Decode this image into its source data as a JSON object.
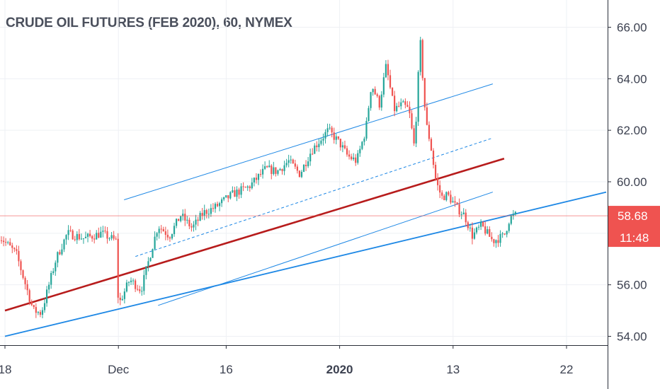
{
  "title": "CRUDE OIL FUTURES (FEB 2020), 60, NYMEX",
  "colors": {
    "up": "#26a69a",
    "down": "#ef5350",
    "price_marker": "#ef5350",
    "trend_red": "#b71c1c",
    "trend_blue": "#1e88e5"
  },
  "chart_data": {
    "type": "candlestick",
    "title": "CRUDE OIL FUTURES (FEB 2020), 60, NYMEX",
    "y_ticks": [
      "66.00",
      "64.00",
      "62.00",
      "60.00",
      "58.00",
      "56.00",
      "54.00"
    ],
    "y_tick_values": [
      66,
      64,
      62,
      60,
      58,
      56,
      54
    ],
    "ylim": [
      53.6,
      66.6
    ],
    "x_ticks": [
      {
        "label": "18",
        "t": 0.0,
        "bold": false
      },
      {
        "label": "Dec",
        "t": 10.0,
        "bold": false
      },
      {
        "label": "16",
        "t": 19.5,
        "bold": false
      },
      {
        "label": "2020",
        "t": 29.5,
        "bold": true
      },
      {
        "label": "13",
        "t": 39.5,
        "bold": false
      },
      {
        "label": "22",
        "t": 49.5,
        "bold": false
      }
    ],
    "current_price": "58.68",
    "current_price_value": 58.68,
    "countdown": "11:48",
    "candle_path": [
      [
        -0.5,
        57.9
      ],
      [
        1.0,
        57.2
      ],
      [
        2.5,
        55.0
      ],
      [
        3.2,
        54.9
      ],
      [
        4.5,
        57.0
      ],
      [
        5.5,
        58.0
      ],
      [
        7.0,
        57.8
      ],
      [
        8.5,
        58.0
      ],
      [
        9.8,
        57.7
      ],
      [
        10.0,
        55.2
      ],
      [
        11.0,
        56.2
      ],
      [
        12.0,
        55.8
      ],
      [
        13.0,
        57.5
      ],
      [
        13.5,
        58.3
      ],
      [
        14.5,
        57.9
      ],
      [
        15.5,
        58.7
      ],
      [
        16.5,
        58.2
      ],
      [
        17.5,
        58.8
      ],
      [
        18.5,
        59.0
      ],
      [
        20.0,
        59.5
      ],
      [
        21.5,
        59.8
      ],
      [
        23.0,
        60.5
      ],
      [
        24.0,
        60.4
      ],
      [
        25.0,
        60.8
      ],
      [
        26.0,
        60.3
      ],
      [
        27.0,
        61.2
      ],
      [
        28.5,
        62.0
      ],
      [
        29.5,
        61.5
      ],
      [
        30.2,
        61.0
      ],
      [
        31.0,
        60.8
      ],
      [
        31.8,
        62.0
      ],
      [
        32.3,
        63.8
      ],
      [
        33.0,
        63.0
      ],
      [
        33.6,
        64.5
      ],
      [
        34.3,
        62.8
      ],
      [
        35.0,
        63.0
      ],
      [
        35.6,
        62.8
      ],
      [
        36.1,
        61.3
      ],
      [
        36.6,
        65.5
      ],
      [
        37.1,
        62.3
      ],
      [
        37.5,
        61.5
      ],
      [
        38.0,
        60.0
      ],
      [
        38.5,
        59.4
      ],
      [
        39.0,
        59.5
      ],
      [
        39.8,
        59.0
      ],
      [
        40.5,
        58.7
      ],
      [
        41.2,
        57.9
      ],
      [
        42.0,
        58.3
      ],
      [
        43.0,
        57.7
      ],
      [
        44.0,
        57.9
      ],
      [
        44.5,
        58.6
      ],
      [
        45.0,
        58.7
      ]
    ],
    "trend_lines": [
      {
        "color": "red",
        "points": [
          [
            0.0,
            55.0
          ],
          [
            44.0,
            60.9
          ]
        ]
      },
      {
        "color": "blue",
        "points": [
          [
            0.0,
            54.0
          ],
          [
            53.0,
            59.6
          ]
        ]
      },
      {
        "color": "blue_thin",
        "points": [
          [
            13.5,
            55.2
          ],
          [
            43.0,
            59.6
          ]
        ]
      },
      {
        "color": "channel_upper",
        "points": [
          [
            10.5,
            59.3
          ],
          [
            43.0,
            63.8
          ]
        ]
      },
      {
        "color": "channel_mid_dashed",
        "points": [
          [
            11.5,
            57.1
          ],
          [
            43.0,
            61.7
          ]
        ]
      }
    ],
    "grid": true,
    "legend": "none"
  }
}
